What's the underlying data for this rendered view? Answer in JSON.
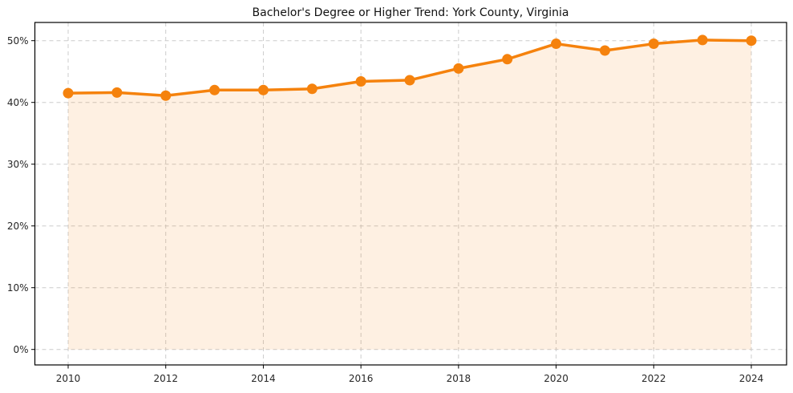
{
  "chart_data": {
    "type": "line",
    "title": "Bachelor's Degree or Higher Trend: York County, Virginia",
    "x": [
      2010,
      2011,
      2012,
      2013,
      2014,
      2015,
      2016,
      2017,
      2018,
      2019,
      2020,
      2021,
      2022,
      2023,
      2024
    ],
    "values": [
      41.5,
      41.6,
      41.1,
      42.0,
      42.0,
      42.2,
      43.4,
      43.6,
      45.5,
      47.0,
      49.5,
      48.4,
      49.5,
      50.1,
      50.0
    ],
    "x_tick_values": [
      2010,
      2012,
      2014,
      2016,
      2018,
      2020,
      2022,
      2024
    ],
    "x_tick_labels": [
      "2010",
      "2012",
      "2014",
      "2016",
      "2018",
      "2020",
      "2022",
      "2024"
    ],
    "y_tick_values": [
      0,
      10,
      20,
      30,
      40,
      50
    ],
    "y_tick_labels": [
      "0%",
      "10%",
      "20%",
      "30%",
      "40%",
      "50%"
    ],
    "ylim": [
      0,
      50
    ],
    "xlabel": "",
    "ylabel": "",
    "grid": true,
    "legend": false,
    "area_fill": true,
    "colors": {
      "line": "#F5820D",
      "marker": "#F5820D",
      "fill": "#F5820D",
      "fill_opacity": "0.12",
      "grid": "#CCCCCC",
      "axis": "#000000",
      "tick_label": "#262626",
      "title": "#111111"
    }
  }
}
